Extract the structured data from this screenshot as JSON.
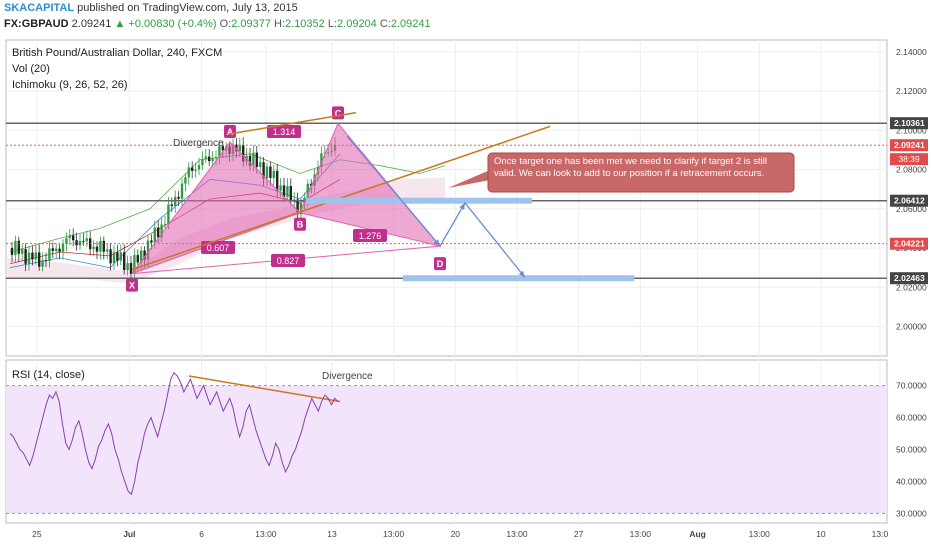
{
  "header": {
    "publisher": "SKACAPITAL",
    "published_text": "published on TradingView.com, July 13, 2015",
    "symbol": "FX:GBPAUD",
    "last": "2.09241",
    "change": "+0.00830 (+0.4%)",
    "o_label": "O:",
    "o_value": "2.09377",
    "h_label": "H:",
    "h_value": "2.10352",
    "l_label": "L:",
    "l_value": "2.09204",
    "c_label": "C:",
    "c_value": "2.09241"
  },
  "legend": {
    "instrument": "British Pound/Australian Dollar, 240, FXCM",
    "vol": "Vol (20)",
    "ichimoku": "Ichimoku (9, 26, 52, 26)",
    "rsi": "RSI (14, close)"
  },
  "colors": {
    "grid": "#eeeeee",
    "pattern_fill": "#e060b0",
    "pattern_label": "#c02f8e",
    "trendline": "#c87a1e",
    "target_box": "#9ec3ec",
    "arrow": "#6a8fcf",
    "note_bg": "#c86868",
    "rsi_band": "#f1e4fb",
    "price_badge": "#e04b4b",
    "level_badge": "#444444",
    "bull": "#2e9e45",
    "bear": "#333333"
  },
  "chart_data": {
    "type": "candlestick",
    "price_axis": {
      "ticks": [
        "2.14000",
        "2.12000",
        "2.10000",
        "2.08000",
        "2.06000",
        "2.04000",
        "2.02000",
        "2.00000"
      ],
      "ylim": [
        1.985,
        2.146
      ],
      "levels": [
        {
          "value": 2.10361,
          "label": "2.10361",
          "style": "dark"
        },
        {
          "value": 2.09241,
          "label": "2.09241",
          "style": "red"
        },
        {
          "value": 2.06412,
          "label": "2.06412",
          "style": "dark"
        },
        {
          "value": 2.04221,
          "label": "2.04221",
          "style": "red"
        },
        {
          "value": 2.02463,
          "label": "2.02463",
          "style": "dark"
        }
      ],
      "countdown": "38:39"
    },
    "x_axis": {
      "ticks": [
        "25",
        "Jul",
        "6",
        "13:00",
        "13",
        "13:00",
        "20",
        "13:00",
        "27",
        "13:00",
        "Aug",
        "13:00",
        "10",
        "13:0"
      ],
      "bold": [
        "Jul",
        "Aug"
      ]
    },
    "pattern": {
      "points": [
        {
          "name": "X",
          "value": 2.027
        },
        {
          "name": "A",
          "value": 2.094
        },
        {
          "name": "B",
          "value": 2.058
        },
        {
          "name": "C",
          "value": 2.1035
        },
        {
          "name": "D",
          "value": 2.041
        }
      ],
      "ratios": [
        "0.607",
        "1.314",
        "1.276",
        "0.827"
      ]
    },
    "annotations": {
      "divergence_price": "Divergence",
      "divergence_rsi": "Divergence",
      "note": "Once target one has been met we need to clarify if target 2 is still valid. We can look to add to our position if a retracement occurs."
    },
    "rsi_axis": {
      "ticks": [
        "70.0000",
        "60.0000",
        "50.0000",
        "40.0000",
        "30.0000"
      ],
      "ylim": [
        27,
        78
      ],
      "band": [
        30,
        70
      ]
    },
    "rsi_values": [
      55,
      54,
      52,
      50,
      49,
      47,
      45,
      48,
      52,
      56,
      60,
      64,
      67,
      66,
      68,
      65,
      58,
      52,
      50,
      53,
      57,
      59,
      55,
      50,
      46,
      44,
      47,
      51,
      53,
      56,
      58,
      55,
      50,
      47,
      43,
      40,
      37,
      36,
      40,
      46,
      50,
      55,
      58,
      60,
      57,
      54,
      58,
      62,
      67,
      72,
      74,
      73,
      71,
      68,
      70,
      72,
      69,
      66,
      68,
      70,
      67,
      64,
      66,
      68,
      65,
      62,
      64,
      66,
      63,
      58,
      54,
      57,
      62,
      64,
      60,
      56,
      53,
      50,
      47,
      45,
      48,
      52,
      50,
      46,
      43,
      45,
      48,
      50,
      53,
      56,
      60,
      63,
      66,
      64,
      62,
      65,
      67,
      66,
      64,
      66,
      65
    ]
  }
}
